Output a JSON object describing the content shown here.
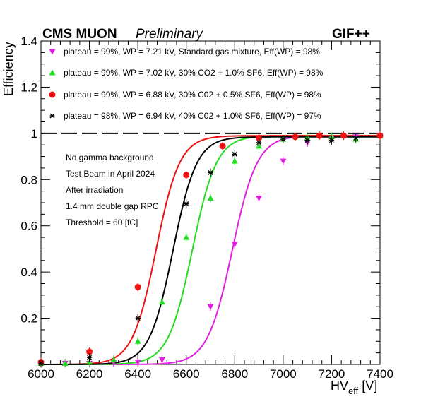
{
  "chart_data": {
    "type": "scatter",
    "header_left_bold": "CMS MUON",
    "header_left_italic": "Preliminary",
    "header_right": "GIF++",
    "xlabel": "HV",
    "xlabel_sub": "eff",
    "xlabel_unit": "[V]",
    "ylabel": "Efficiency",
    "xlim": [
      6000,
      7400
    ],
    "ylim": [
      0,
      1.4
    ],
    "x_ticks": [
      6000,
      6200,
      6400,
      6600,
      6800,
      7000,
      7200,
      7400
    ],
    "y_ticks": [
      0.2,
      0.4,
      0.6,
      0.8,
      1,
      1.2,
      1.4
    ],
    "reference_line_y": 1,
    "legend_placement": "top",
    "notes": [
      "No gamma background",
      "Test Beam in April 2024",
      "After irradiation",
      "1.4 mm double gap RPC",
      "Threshold = 60 [fC]"
    ],
    "series": [
      {
        "name": "plateau = 99%, WP = 7.21 kV, Standard gas mixture, Eff(WP) = 98%",
        "color": "#e020e0",
        "marker": "triangle-down",
        "plateau": 0.99,
        "hv50": 6790,
        "slope": 0.0195,
        "x": [
          6000,
          6100,
          6200,
          6300,
          6400,
          6500,
          6700,
          6800,
          6900,
          7000,
          7100,
          7200,
          7300,
          7400
        ],
        "y": [
          0.005,
          0.005,
          0.005,
          0.008,
          0.01,
          0.02,
          0.25,
          0.52,
          0.72,
          0.88,
          0.96,
          0.98,
          0.985,
          0.99
        ]
      },
      {
        "name": "plateau = 99%, WP = 7.02 kV, 30% CO2 + 1.0% SF6, Eff(WP) = 98%",
        "color": "#22dd22",
        "marker": "triangle-up",
        "plateau": 0.99,
        "hv50": 6625,
        "slope": 0.02,
        "x": [
          6000,
          6100,
          6200,
          6300,
          6400,
          6500,
          6600,
          6700,
          6800,
          6900,
          7000,
          7100,
          7200,
          7300,
          7400
        ],
        "y": [
          0.005,
          0.005,
          0.01,
          0.02,
          0.1,
          0.27,
          0.55,
          0.72,
          0.88,
          0.945,
          0.975,
          0.98,
          0.985,
          0.975,
          0.99
        ]
      },
      {
        "name": "plateau = 99%, WP = 6.88 kV, 30% C02 + 0.5% SF6, Eff(WP) = 98%",
        "color": "#ee1111",
        "marker": "circle",
        "plateau": 0.99,
        "hv50": 6475,
        "slope": 0.0205,
        "x": [
          6000,
          6200,
          6400,
          6600,
          6750,
          6900,
          7050,
          7150,
          7250,
          7400
        ],
        "y": [
          0.01,
          0.055,
          0.335,
          0.82,
          0.945,
          0.98,
          0.985,
          0.99,
          0.99,
          0.99
        ]
      },
      {
        "name": "plateau = 98%, WP = 6.94 kV, 40% C02 + 1.0% SF6, Eff(WP) = 97%",
        "color": "#000000",
        "marker": "star",
        "plateau": 0.985,
        "hv50": 6545,
        "slope": 0.0205,
        "x": [
          6000,
          6200,
          6400,
          6600,
          6700,
          6800,
          6900,
          7000,
          7100,
          7200,
          7300
        ],
        "y": [
          0.005,
          0.03,
          0.2,
          0.695,
          0.83,
          0.91,
          0.96,
          0.975,
          0.97,
          0.97,
          0.98
        ]
      }
    ]
  }
}
